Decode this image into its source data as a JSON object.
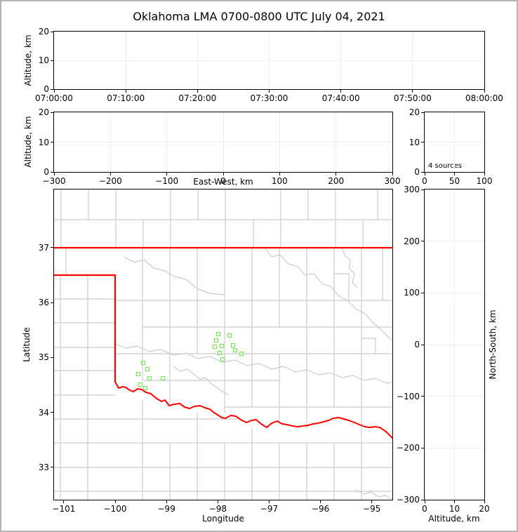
{
  "title": "Oklahoma LMA 0700-0800 UTC July 04, 2021",
  "colors": {
    "source_marker": "#6aeb47",
    "state_border": "#ff0000",
    "county_line": "#cccccc",
    "grid_line": "#ededed",
    "figure_border": "#b4b4b4",
    "axis": "#000000"
  },
  "chart_data": [
    {
      "id": "time_height",
      "type": "scatter",
      "xlabel": "",
      "ylabel": "Altitude, km",
      "xlim": [
        0,
        3600
      ],
      "ylim": [
        0,
        20
      ],
      "grid": true,
      "x_ticks": [
        {
          "v": 0,
          "label": "07:00:00"
        },
        {
          "v": 600,
          "label": "07:10:00"
        },
        {
          "v": 1200,
          "label": "07:20:00"
        },
        {
          "v": 1800,
          "label": "07:30:00"
        },
        {
          "v": 2400,
          "label": "07:40:00"
        },
        {
          "v": 3000,
          "label": "07:50:00"
        },
        {
          "v": 3600,
          "label": "08:00:00"
        }
      ],
      "y_ticks": [
        {
          "v": 0,
          "label": "0"
        },
        {
          "v": 10,
          "label": "10"
        },
        {
          "v": 20,
          "label": "20"
        }
      ],
      "points": []
    },
    {
      "id": "ew_height",
      "type": "scatter",
      "xlabel": "East-West, km",
      "ylabel": "Altitude, km",
      "xlim": [
        -300,
        300
      ],
      "ylim": [
        0,
        20
      ],
      "grid": true,
      "x_ticks": [
        {
          "v": -300,
          "label": "−300"
        },
        {
          "v": -200,
          "label": "−200"
        },
        {
          "v": -100,
          "label": "−100"
        },
        {
          "v": 0,
          "label": "0"
        },
        {
          "v": 100,
          "label": "100"
        },
        {
          "v": 200,
          "label": "200"
        },
        {
          "v": 300,
          "label": "300"
        }
      ],
      "y_ticks": [
        {
          "v": 0,
          "label": "0"
        },
        {
          "v": 10,
          "label": "10"
        },
        {
          "v": 20,
          "label": "20"
        }
      ],
      "points": []
    },
    {
      "id": "alt_histogram",
      "type": "histogram",
      "xlabel": "",
      "ylabel": "",
      "annotation": "4 sources",
      "xlim": [
        0,
        100
      ],
      "ylim": [
        0,
        20
      ],
      "grid": true,
      "x_ticks": [
        {
          "v": 0,
          "label": "0"
        },
        {
          "v": 50,
          "label": "50"
        },
        {
          "v": 100,
          "label": "100"
        }
      ],
      "y_ticks": [
        {
          "v": 0,
          "label": "0"
        },
        {
          "v": 10,
          "label": "10"
        },
        {
          "v": 20,
          "label": "20"
        }
      ],
      "bars": []
    },
    {
      "id": "plan_view",
      "type": "scatter",
      "xlabel": "Longitude",
      "ylabel": "Latitude",
      "xlim": [
        -101.19,
        -94.6
      ],
      "ylim": [
        32.41,
        38.06
      ],
      "grid": false,
      "marker": "open-square",
      "x_ticks": [
        {
          "v": -101,
          "label": "−101"
        },
        {
          "v": -100,
          "label": "−100"
        },
        {
          "v": -99,
          "label": "−99"
        },
        {
          "v": -98,
          "label": "−98"
        },
        {
          "v": -97,
          "label": "−97"
        },
        {
          "v": -96,
          "label": "−96"
        },
        {
          "v": -95,
          "label": "−95"
        }
      ],
      "y_ticks": [
        {
          "v": 33,
          "label": "33"
        },
        {
          "v": 34,
          "label": "34"
        },
        {
          "v": 35,
          "label": "35"
        },
        {
          "v": 36,
          "label": "36"
        },
        {
          "v": 37,
          "label": "37"
        }
      ],
      "points": [
        [
          -97.99,
          35.42
        ],
        [
          -97.77,
          35.39
        ],
        [
          -98.03,
          35.3
        ],
        [
          -98.05,
          35.19
        ],
        [
          -97.91,
          35.2
        ],
        [
          -97.69,
          35.21
        ],
        [
          -97.65,
          35.13
        ],
        [
          -97.95,
          35.07
        ],
        [
          -97.53,
          35.06
        ],
        [
          -97.9,
          34.96
        ],
        [
          -99.44,
          34.9
        ],
        [
          -99.37,
          34.78
        ],
        [
          -99.54,
          34.69
        ],
        [
          -99.32,
          34.61
        ],
        [
          -99.06,
          34.62
        ],
        [
          -99.5,
          34.5
        ],
        [
          -99.41,
          34.43
        ]
      ]
    },
    {
      "id": "ns_height",
      "type": "scatter",
      "xlabel": "Altitude, km",
      "ylabel": "North-South, km",
      "xlim": [
        0,
        20
      ],
      "ylim": [
        -300,
        300
      ],
      "grid": true,
      "x_ticks": [
        {
          "v": 0,
          "label": "0"
        },
        {
          "v": 10,
          "label": "10"
        },
        {
          "v": 20,
          "label": "20"
        }
      ],
      "y_ticks": [
        {
          "v": 300,
          "label": "300"
        },
        {
          "v": 200,
          "label": "200"
        },
        {
          "v": 100,
          "label": "100"
        },
        {
          "v": 0,
          "label": "0"
        },
        {
          "v": -100,
          "label": "−100"
        },
        {
          "v": -200,
          "label": "−200"
        },
        {
          "v": -300,
          "label": "−300"
        }
      ],
      "points": []
    }
  ]
}
